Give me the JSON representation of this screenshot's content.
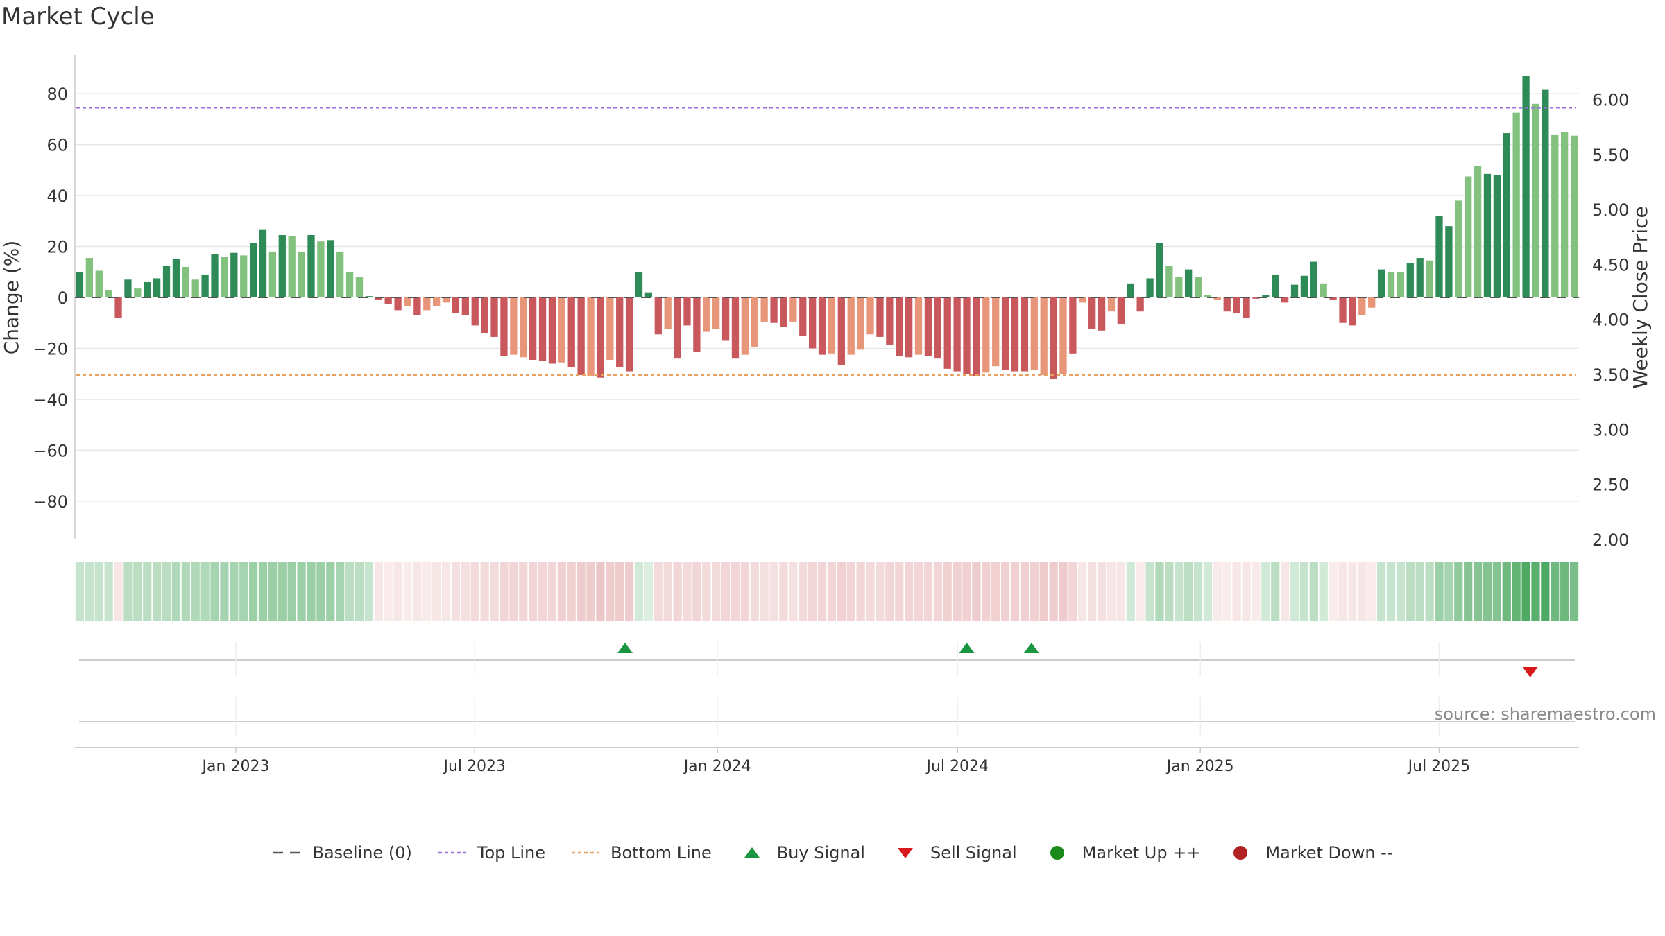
{
  "title": "Market Cycle",
  "source": "source: sharemaestro.com",
  "colors": {
    "up_strong": "#2e8b57",
    "up_light": "#82c17e",
    "down_strong": "#c9585c",
    "down_light": "#e8967a",
    "top_line": "#9b6fe0",
    "bottom_line": "#e8a060",
    "buy": "#1a9641",
    "sell": "#d7191c",
    "market_up": "#1a8a1a",
    "market_down": "#b22222"
  },
  "chart_data": {
    "type": "bar",
    "ylabel": "Change (%)",
    "y2label": "Weekly Close Price",
    "ylim": [
      -95,
      95
    ],
    "y2lim": [
      2.0,
      6.4
    ],
    "y_ticks": [
      80,
      60,
      40,
      20,
      0,
      -20,
      -40,
      -60,
      -80
    ],
    "y_tick_labels": [
      "80",
      "60",
      "40",
      "20",
      "0",
      "−20",
      "−40",
      "−60",
      "−80"
    ],
    "y2_ticks": [
      6.0,
      5.5,
      5.0,
      4.5,
      4.0,
      3.5,
      3.0,
      2.5,
      2.0
    ],
    "y2_tick_labels": [
      "6.00",
      "5.50",
      "5.00",
      "4.50",
      "4.00",
      "3.50",
      "3.00",
      "2.50",
      "2.00"
    ],
    "x_start": "2022-09-01",
    "x_end": "2025-10-15",
    "x_ticks": [
      "2023-01-01",
      "2023-07-01",
      "2024-01-01",
      "2024-07-01",
      "2025-01-01",
      "2025-07-01"
    ],
    "x_tick_labels": [
      "Jan 2023",
      "Jul 2023",
      "Jan 2024",
      "Jul 2024",
      "Jan 2025",
      "Jul 2025"
    ],
    "top_line": 74.5,
    "bottom_line": -30.5,
    "grid": true,
    "legend_position": "bottom",
    "values": [
      10,
      15.5,
      10.5,
      3,
      -8,
      7,
      3.5,
      6,
      7.5,
      12.5,
      15,
      12,
      7,
      9,
      17,
      16,
      17.5,
      16.5,
      21.5,
      26.5,
      18,
      24.5,
      24,
      18,
      24.5,
      22,
      22.5,
      18,
      10,
      8,
      0.5,
      -1,
      -2.5,
      -5,
      -3.5,
      -7,
      -5,
      -3.5,
      -2,
      -6,
      -7,
      -11,
      -14,
      -15.5,
      -23,
      -22.5,
      -23.5,
      -24.5,
      -25,
      -26,
      -25.5,
      -27.5,
      -30.5,
      -31,
      -31.5,
      -24.5,
      -27.5,
      -29,
      10,
      2,
      -14.5,
      -12.5,
      -24,
      -11,
      -21.5,
      -13.5,
      -12.5,
      -17,
      -24,
      -22.5,
      -19.5,
      -9.5,
      -10,
      -11.5,
      -9.5,
      -15,
      -20,
      -22.5,
      -22,
      -26.5,
      -22.5,
      -20.5,
      -14.5,
      -15.5,
      -18.5,
      -23,
      -23.5,
      -22.5,
      -23,
      -24,
      -28,
      -29,
      -30,
      -31,
      -29.5,
      -27,
      -28.5,
      -29,
      -29,
      -28.5,
      -30.5,
      -32,
      -30,
      -22,
      -2,
      -12.5,
      -13,
      -5.5,
      -10.5,
      5.5,
      -5.5,
      7.5,
      21.5,
      12.5,
      8,
      11,
      8,
      1,
      -1,
      -5.5,
      -6,
      -8,
      -0.5,
      1,
      9,
      -2,
      5,
      8.5,
      14,
      5.5,
      -1,
      -10,
      -11,
      -7,
      -4,
      11,
      10,
      10,
      13.5,
      15.5,
      14.5,
      32,
      28,
      38,
      47.5,
      51.5,
      48.5,
      48,
      64.5,
      72.5,
      87,
      76,
      81.5,
      64,
      65,
      63.5
    ],
    "shade": [
      "s",
      "l",
      "l",
      "l",
      "s",
      "s",
      "l",
      "s",
      "s",
      "s",
      "s",
      "l",
      "l",
      "s",
      "s",
      "l",
      "s",
      "l",
      "s",
      "s",
      "l",
      "s",
      "l",
      "l",
      "s",
      "l",
      "s",
      "l",
      "l",
      "l",
      "s",
      "s",
      "s",
      "s",
      "l",
      "s",
      "l",
      "l",
      "l",
      "s",
      "s",
      "s",
      "s",
      "s",
      "s",
      "l",
      "l",
      "s",
      "s",
      "s",
      "l",
      "s",
      "s",
      "l",
      "s",
      "l",
      "s",
      "s",
      "s",
      "s",
      "s",
      "l",
      "s",
      "s",
      "s",
      "l",
      "l",
      "s",
      "s",
      "l",
      "l",
      "l",
      "s",
      "s",
      "l",
      "s",
      "s",
      "s",
      "l",
      "s",
      "l",
      "l",
      "l",
      "s",
      "s",
      "s",
      "s",
      "l",
      "s",
      "s",
      "s",
      "s",
      "s",
      "s",
      "l",
      "l",
      "s",
      "s",
      "s",
      "l",
      "l",
      "s",
      "l",
      "s",
      "l",
      "s",
      "s",
      "l",
      "s",
      "s",
      "s",
      "s",
      "s",
      "l",
      "l",
      "s",
      "l",
      "l",
      "l",
      "s",
      "s",
      "s",
      "s",
      "s",
      "s",
      "s",
      "s",
      "s",
      "s",
      "l",
      "s",
      "s",
      "s",
      "l",
      "l",
      "s",
      "l",
      "l",
      "s",
      "s",
      "l",
      "s",
      "s",
      "l",
      "l",
      "l",
      "s",
      "s",
      "s",
      "l",
      "s",
      "l",
      "s",
      "l",
      "l"
    ],
    "heat": [
      0.45,
      0.45,
      0.45,
      0.45,
      0.35,
      0.5,
      0.5,
      0.5,
      0.5,
      0.5,
      0.55,
      0.55,
      0.55,
      0.55,
      0.6,
      0.6,
      0.6,
      0.6,
      0.65,
      0.65,
      0.65,
      0.65,
      0.65,
      0.65,
      0.65,
      0.65,
      0.65,
      0.6,
      0.5,
      0.5,
      0.45,
      0.35,
      0.3,
      0.35,
      0.3,
      0.35,
      0.3,
      0.35,
      0.35,
      0.4,
      0.4,
      0.45,
      0.45,
      0.45,
      0.5,
      0.5,
      0.5,
      0.5,
      0.5,
      0.5,
      0.55,
      0.55,
      0.6,
      0.6,
      0.65,
      0.6,
      0.6,
      0.6,
      0.4,
      0.35,
      0.45,
      0.45,
      0.5,
      0.45,
      0.5,
      0.45,
      0.45,
      0.5,
      0.5,
      0.5,
      0.45,
      0.4,
      0.4,
      0.45,
      0.4,
      0.45,
      0.5,
      0.5,
      0.5,
      0.55,
      0.5,
      0.5,
      0.45,
      0.45,
      0.5,
      0.5,
      0.5,
      0.5,
      0.5,
      0.5,
      0.55,
      0.55,
      0.55,
      0.6,
      0.55,
      0.55,
      0.55,
      0.55,
      0.55,
      0.55,
      0.6,
      0.6,
      0.6,
      0.5,
      0.35,
      0.4,
      0.4,
      0.35,
      0.35,
      0.4,
      0.3,
      0.45,
      0.55,
      0.5,
      0.45,
      0.5,
      0.45,
      0.4,
      0.3,
      0.3,
      0.35,
      0.35,
      0.3,
      0.4,
      0.5,
      0.35,
      0.4,
      0.45,
      0.5,
      0.4,
      0.3,
      0.35,
      0.35,
      0.35,
      0.3,
      0.45,
      0.45,
      0.45,
      0.5,
      0.5,
      0.5,
      0.65,
      0.6,
      0.7,
      0.75,
      0.75,
      0.75,
      0.75,
      0.85,
      0.9,
      1,
      0.95,
      1,
      0.85,
      0.85,
      0.8
    ],
    "buy_signals": [
      "2023-10-23",
      "2024-07-08",
      "2024-08-26"
    ],
    "sell_signals": [
      "2025-09-08"
    ]
  },
  "legend": [
    {
      "label": "Baseline (0)",
      "symbol": "baseline"
    },
    {
      "label": "Top Line",
      "symbol": "topline"
    },
    {
      "label": "Bottom Line",
      "symbol": "bottomline"
    },
    {
      "label": "Buy Signal",
      "symbol": "buy"
    },
    {
      "label": "Sell Signal",
      "symbol": "sell"
    },
    {
      "label": "Market Up ++",
      "symbol": "up"
    },
    {
      "label": "Market Down --",
      "symbol": "down"
    }
  ]
}
